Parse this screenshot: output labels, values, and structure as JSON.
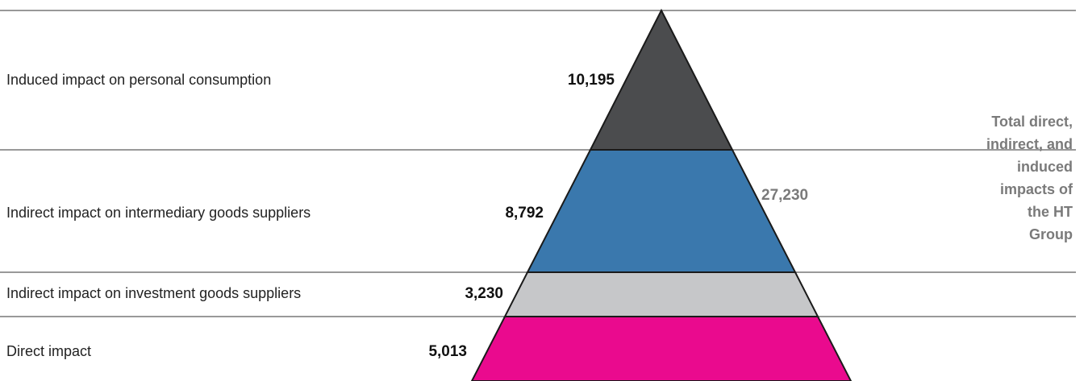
{
  "tiers": [
    {
      "label": "Induced impact on personal consumption",
      "value": "10,195",
      "color": "#4b4c4e"
    },
    {
      "label": "Indirect impact on intermediary goods suppliers",
      "value": "8,792",
      "color": "#3a78ad"
    },
    {
      "label": "Indirect impact on investment goods suppliers",
      "value": "3,230",
      "color": "#c6c7c9"
    },
    {
      "label": "Direct impact",
      "value": "5,013",
      "color": "#ea0a8e"
    }
  ],
  "total": {
    "value": "27,230",
    "caption": "Total direct, indirect, and induced impacts of the HT Group",
    "color": "#7a7a7a"
  }
}
